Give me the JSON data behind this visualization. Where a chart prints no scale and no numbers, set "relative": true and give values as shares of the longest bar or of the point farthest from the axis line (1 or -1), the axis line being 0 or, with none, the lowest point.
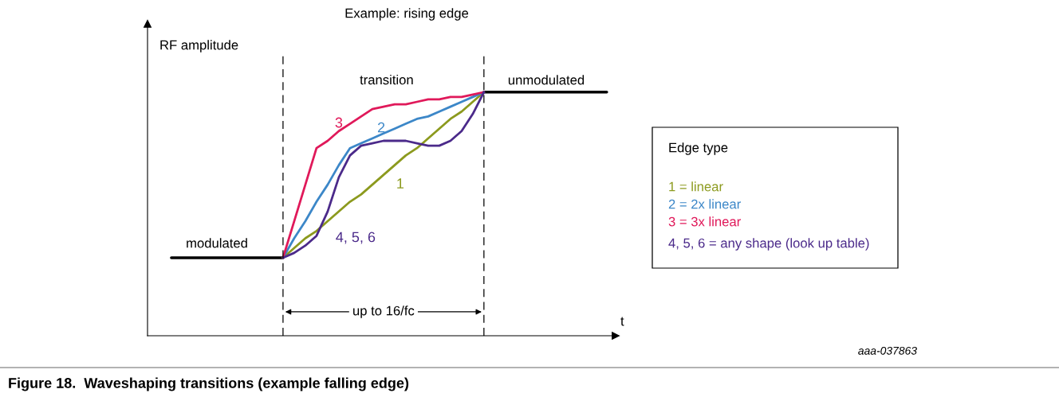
{
  "chart_data": {
    "type": "line",
    "relative": true,
    "title": "Example: rising edge",
    "ylabel": "RF amplitude",
    "xlabel": "t",
    "categories": [
      null,
      null,
      null,
      null,
      null,
      null,
      null,
      null,
      null,
      null,
      null,
      null,
      null,
      null,
      null,
      null,
      null,
      null,
      null,
      null,
      null,
      null,
      null,
      null,
      null,
      null,
      null,
      null,
      null,
      null,
      null,
      null,
      null,
      null,
      null,
      null,
      null,
      null,
      null,
      null
    ],
    "series": [
      {
        "color": "#000000",
        "values": [
          0.32,
          0.32,
          0.32,
          0.32,
          0.32,
          0.32,
          0.32,
          0.32,
          0.32,
          0.32,
          0.32,
          null,
          null,
          null,
          null,
          null,
          null,
          null,
          null,
          null,
          null,
          null,
          null,
          null,
          null,
          null,
          null,
          null,
          null,
          null,
          null,
          null,
          null,
          null,
          null,
          null,
          null,
          null,
          null,
          null
        ]
      },
      {
        "color": "#000000",
        "values": [
          null,
          null,
          null,
          null,
          null,
          null,
          null,
          null,
          null,
          null,
          null,
          null,
          null,
          null,
          null,
          null,
          null,
          null,
          null,
          null,
          null,
          null,
          null,
          null,
          null,
          null,
          null,
          null,
          1,
          1,
          1,
          1,
          1,
          1,
          1,
          1,
          1,
          1,
          1,
          1
        ]
      },
      {
        "name": "1",
        "color": "#8c9a1e",
        "values": [
          null,
          null,
          null,
          null,
          null,
          null,
          null,
          null,
          null,
          null,
          0.32,
          0.36,
          0.4,
          0.43,
          0.47,
          0.51,
          0.55,
          0.58,
          0.62,
          0.66,
          0.7,
          0.74,
          0.77,
          0.81,
          0.85,
          0.89,
          0.92,
          0.96,
          1,
          null,
          null,
          null,
          null,
          null,
          null,
          null,
          null,
          null,
          null,
          null
        ]
      },
      {
        "name": "2",
        "color": "#3c87c8",
        "values": [
          null,
          null,
          null,
          null,
          null,
          null,
          null,
          null,
          null,
          null,
          0.32,
          0.4,
          0.47,
          0.55,
          0.62,
          0.7,
          0.77,
          0.79,
          0.81,
          0.83,
          0.85,
          0.87,
          0.89,
          0.9,
          0.92,
          0.94,
          0.96,
          0.98,
          1,
          null,
          null,
          null,
          null,
          null,
          null,
          null,
          null,
          null,
          null,
          null
        ]
      },
      {
        "name": "3",
        "color": "#e0195a",
        "values": [
          null,
          null,
          null,
          null,
          null,
          null,
          null,
          null,
          null,
          null,
          0.32,
          0.47,
          0.62,
          0.77,
          0.8,
          0.84,
          0.87,
          0.9,
          0.93,
          0.94,
          0.95,
          0.95,
          0.96,
          0.97,
          0.97,
          0.98,
          0.98,
          0.99,
          1,
          null,
          null,
          null,
          null,
          null,
          null,
          null,
          null,
          null,
          null,
          null
        ]
      },
      {
        "name": "4, 5, 6",
        "color": "#4b2a8a",
        "values": [
          null,
          null,
          null,
          null,
          null,
          null,
          null,
          null,
          null,
          null,
          0.32,
          0.34,
          0.37,
          0.41,
          0.51,
          0.65,
          0.74,
          0.78,
          0.79,
          0.8,
          0.8,
          0.8,
          0.79,
          0.78,
          0.78,
          0.8,
          0.84,
          0.91,
          1,
          null,
          null,
          null,
          null,
          null,
          null,
          null,
          null,
          null,
          null,
          null
        ]
      }
    ],
    "annotations": [
      "transition",
      "modulated",
      "unmodulated",
      "up to 16/fc",
      "Edge type",
      "1 = linear",
      "2 = 2x linear",
      "3 = 3x linear",
      "4, 5, 6 = any shape (look up table)",
      "aaa-037863",
      "Figure 18.  Waveshaping transitions (example falling edge)"
    ]
  }
}
